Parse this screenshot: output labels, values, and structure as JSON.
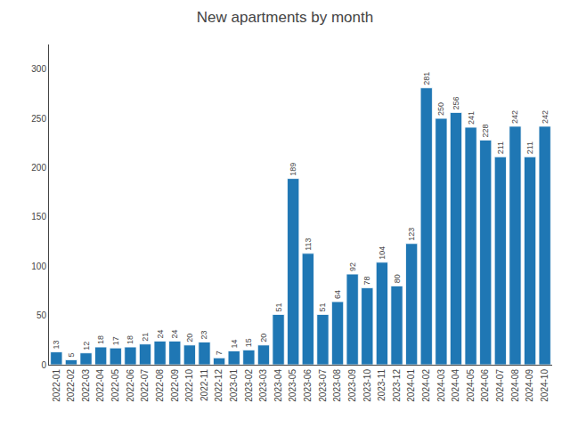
{
  "chart_data": {
    "type": "bar",
    "title": "New apartments by month",
    "categories": [
      "2022-01",
      "2022-02",
      "2022-03",
      "2022-04",
      "2022-05",
      "2022-06",
      "2022-07",
      "2022-08",
      "2022-09",
      "2022-10",
      "2022-11",
      "2022-12",
      "2023-01",
      "2023-02",
      "2023-03",
      "2023-04",
      "2023-05",
      "2023-06",
      "2023-07",
      "2023-08",
      "2023-09",
      "2023-10",
      "2023-11",
      "2023-12",
      "2024-01",
      "2024-02",
      "2024-03",
      "2024-04",
      "2024-05",
      "2024-06",
      "2024-07",
      "2024-08",
      "2024-09",
      "2024-10"
    ],
    "values": [
      13,
      5,
      12,
      18,
      17,
      18,
      21,
      24,
      24,
      20,
      23,
      7,
      14,
      15,
      20,
      51,
      189,
      113,
      51,
      64,
      92,
      78,
      104,
      80,
      123,
      281,
      250,
      256,
      241,
      228,
      211,
      242,
      211,
      242
    ],
    "color": "#1f77b4",
    "ylim": [
      0,
      325
    ],
    "yticks": [
      0,
      50,
      100,
      150,
      200,
      250,
      300
    ],
    "grid": false,
    "data_labels": true
  }
}
